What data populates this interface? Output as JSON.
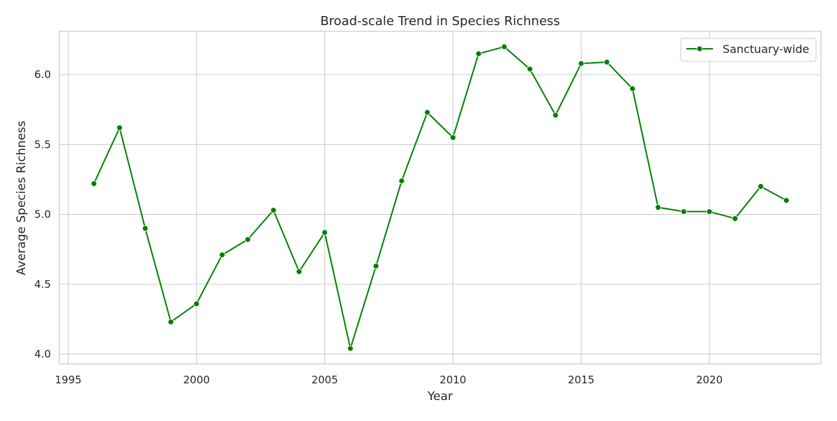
{
  "chart_data": {
    "type": "line",
    "title": "Broad-scale Trend in Species Richness",
    "xlabel": "Year",
    "ylabel": "Average Species Richness",
    "xlim": [
      1994.65,
      2024.35
    ],
    "ylim": [
      3.93,
      6.31
    ],
    "xticks": [
      1995,
      2000,
      2005,
      2010,
      2015,
      2020
    ],
    "yticks": [
      4.0,
      4.5,
      5.0,
      5.5,
      6.0
    ],
    "ytick_labels": [
      "4.0",
      "4.5",
      "5.0",
      "5.5",
      "6.0"
    ],
    "grid": true,
    "legend_position": "top-right",
    "series": [
      {
        "name": "Sanctuary-wide",
        "color": "#008000",
        "marker": "circle",
        "x": [
          1996,
          1997,
          1998,
          1999,
          2000,
          2001,
          2002,
          2003,
          2004,
          2005,
          2006,
          2007,
          2008,
          2009,
          2010,
          2011,
          2012,
          2013,
          2014,
          2015,
          2016,
          2017,
          2018,
          2019,
          2020,
          2021,
          2022,
          2023
        ],
        "y": [
          5.22,
          5.62,
          4.9,
          4.23,
          4.36,
          4.71,
          4.82,
          5.03,
          4.59,
          4.87,
          4.04,
          4.63,
          5.24,
          5.73,
          5.55,
          6.15,
          6.2,
          6.04,
          5.71,
          6.08,
          6.09,
          5.9,
          5.05,
          5.02,
          5.02,
          4.97,
          5.2,
          5.1
        ]
      }
    ]
  }
}
